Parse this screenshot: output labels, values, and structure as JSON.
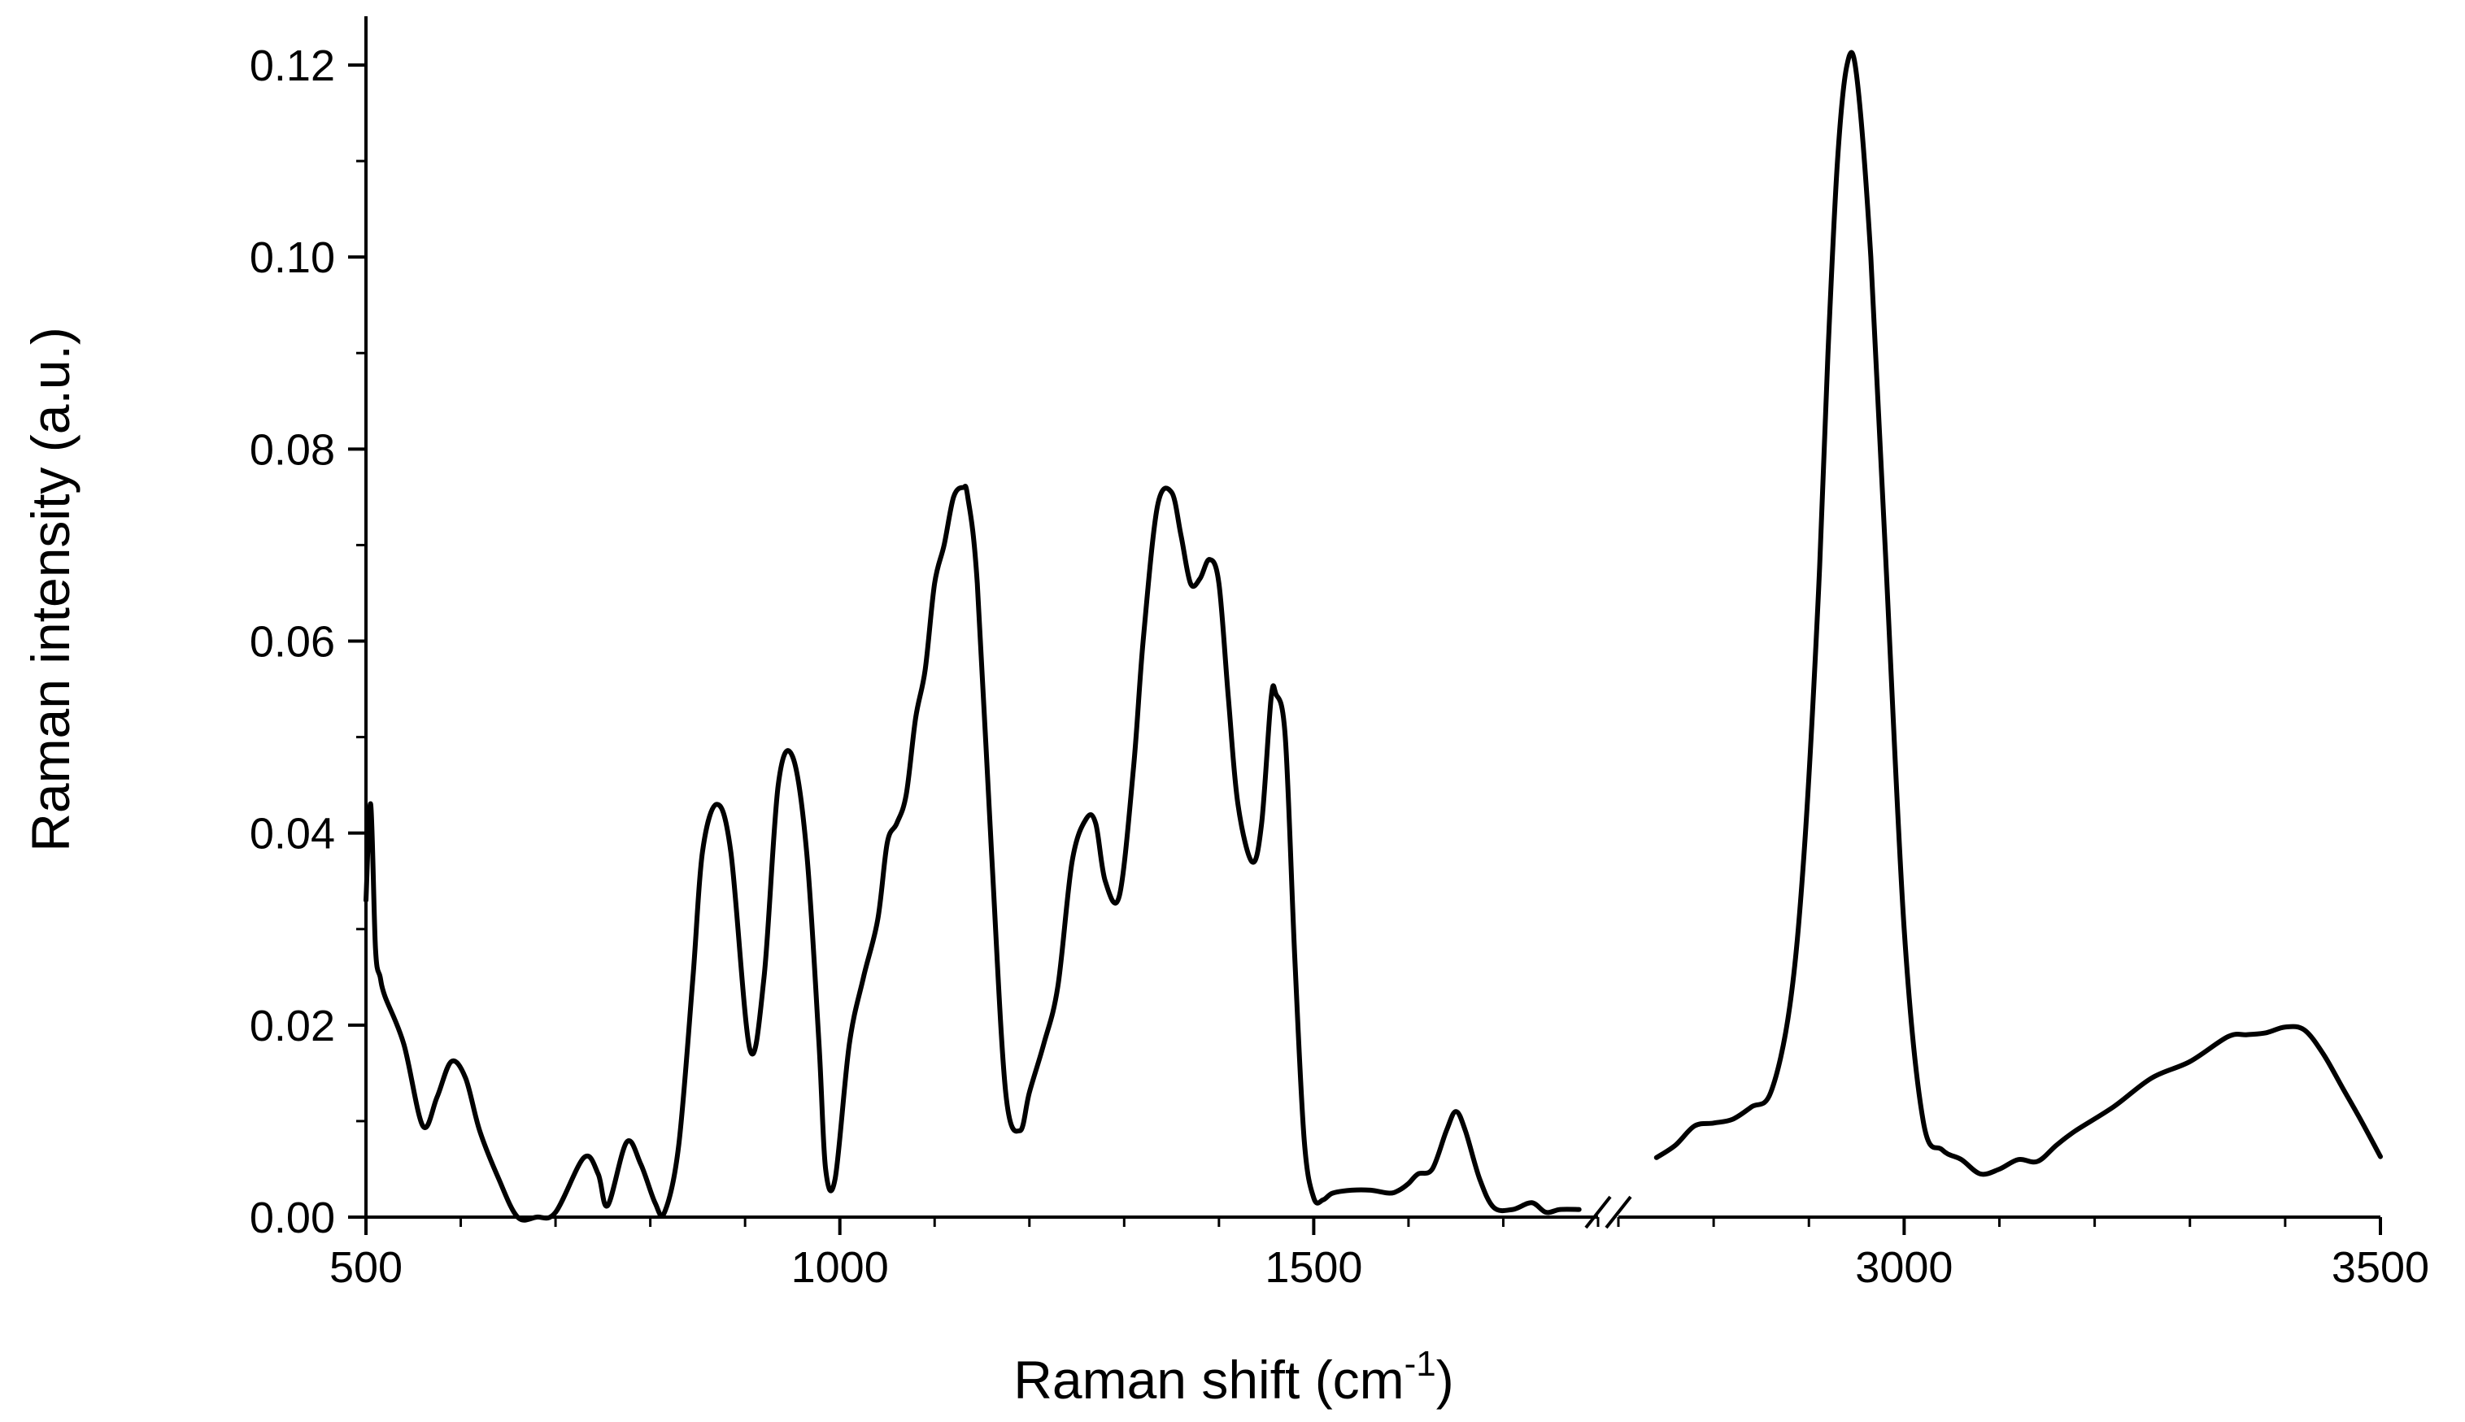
{
  "chart_data": {
    "type": "line",
    "xlabel": "Raman shift (cm",
    "xlabel_superscript": "-1",
    "xlabel_suffix": ")",
    "ylabel": "Raman intensity (a.u.)",
    "ylim": [
      0,
      0.12
    ],
    "broken_x_axis": true,
    "x_segments": [
      {
        "xlim": [
          500,
          1800
        ],
        "ticks": [
          500,
          1000,
          1500
        ],
        "tick_labels": [
          "500",
          "1000",
          "1500"
        ]
      },
      {
        "xlim": [
          2700,
          3500
        ],
        "ticks": [
          3000,
          3500
        ],
        "tick_labels": [
          "3000",
          "3500"
        ]
      }
    ],
    "y_ticks": [
      0,
      0.02,
      0.04,
      0.06,
      0.08,
      0.1,
      0.12
    ],
    "y_tick_labels": [
      "0.00",
      "0.02",
      "0.04",
      "0.06",
      "0.08",
      "0.10",
      "0.12"
    ],
    "line_color": "#000000",
    "series": [
      {
        "segment": 0,
        "x": [
          500,
          505,
          510,
          515,
          520,
          540,
          560,
          575,
          590,
          605,
          620,
          640,
          660,
          680,
          700,
          730,
          745,
          755,
          775,
          790,
          805,
          815,
          830,
          845,
          855,
          870,
          885,
          905,
          920,
          935,
          950,
          965,
          978,
          985,
          995,
          1010,
          1025,
          1040,
          1050,
          1060,
          1070,
          1080,
          1090,
          1100,
          1110,
          1120,
          1130,
          1135,
          1145,
          1160,
          1175,
          1190,
          1200,
          1215,
          1230,
          1245,
          1260,
          1270,
          1280,
          1295,
          1310,
          1320,
          1335,
          1350,
          1360,
          1370,
          1380,
          1390,
          1400,
          1410,
          1420,
          1435,
          1445,
          1455,
          1460,
          1470,
          1480,
          1490,
          1500,
          1510,
          1520,
          1540,
          1560,
          1580,
          1590,
          1600,
          1610,
          1625,
          1640,
          1650,
          1660,
          1675,
          1690,
          1710,
          1730,
          1745,
          1760,
          1780
        ],
        "y": [
          0.033,
          0.043,
          0.028,
          0.025,
          0.023,
          0.018,
          0.0095,
          0.0125,
          0.0162,
          0.0145,
          0.009,
          0.004,
          0.0,
          0.0,
          0.0005,
          0.0062,
          0.0045,
          0.0012,
          0.0078,
          0.0055,
          0.0015,
          0.0005,
          0.0075,
          0.025,
          0.038,
          0.043,
          0.038,
          0.0175,
          0.025,
          0.045,
          0.048,
          0.038,
          0.018,
          0.005,
          0.004,
          0.018,
          0.025,
          0.031,
          0.039,
          0.041,
          0.044,
          0.052,
          0.057,
          0.066,
          0.07,
          0.075,
          0.076,
          0.075,
          0.066,
          0.038,
          0.013,
          0.009,
          0.013,
          0.018,
          0.024,
          0.037,
          0.0415,
          0.041,
          0.035,
          0.0335,
          0.047,
          0.06,
          0.074,
          0.0755,
          0.071,
          0.066,
          0.0665,
          0.0685,
          0.066,
          0.054,
          0.043,
          0.037,
          0.041,
          0.054,
          0.0545,
          0.05,
          0.027,
          0.008,
          0.002,
          0.0018,
          0.0025,
          0.0028,
          0.0028,
          0.0025,
          0.0028,
          0.0035,
          0.0045,
          0.005,
          0.009,
          0.011,
          0.009,
          0.004,
          0.001,
          0.0008,
          0.0015,
          0.0005,
          0.0008,
          0.0008
        ]
      },
      {
        "segment": 1,
        "x": [
          2740,
          2760,
          2780,
          2800,
          2820,
          2840,
          2860,
          2880,
          2895,
          2910,
          2920,
          2930,
          2940,
          2950,
          2965,
          2980,
          3000,
          3020,
          3040,
          3060,
          3080,
          3100,
          3120,
          3140,
          3160,
          3180,
          3220,
          3260,
          3300,
          3340,
          3360,
          3380,
          3400,
          3420,
          3440,
          3460,
          3480,
          3500
        ],
        "y": [
          0.0062,
          0.0075,
          0.0095,
          0.0098,
          0.0102,
          0.0115,
          0.013,
          0.022,
          0.038,
          0.065,
          0.09,
          0.11,
          0.12,
          0.119,
          0.1,
          0.07,
          0.03,
          0.01,
          0.007,
          0.006,
          0.0045,
          0.005,
          0.006,
          0.0058,
          0.0075,
          0.009,
          0.0115,
          0.0145,
          0.0162,
          0.0188,
          0.019,
          0.0192,
          0.0198,
          0.0195,
          0.017,
          0.0135,
          0.01,
          0.0063
        ]
      }
    ]
  }
}
